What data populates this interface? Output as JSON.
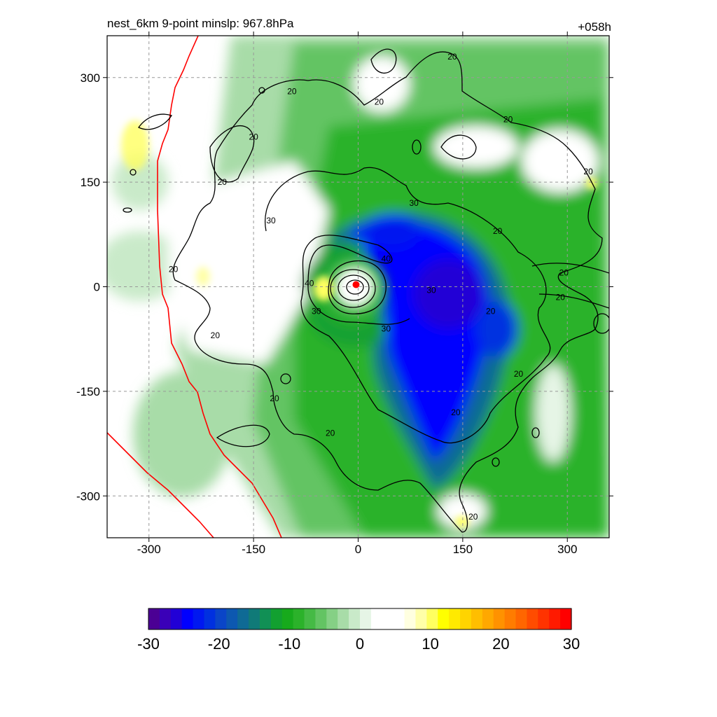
{
  "chart_data": {
    "type": "heatmap",
    "title_left": "nest_6km  9-point minslp: 967.8hPa",
    "title_right": "+058h",
    "xlim": [
      -360,
      360
    ],
    "ylim": [
      -360,
      360
    ],
    "x_ticks": [
      -300,
      -150,
      0,
      150,
      300
    ],
    "y_ticks": [
      300,
      150,
      0,
      -150,
      -300
    ],
    "grid": true,
    "grid_style": "dashed",
    "storm_center": [
      -3,
      3
    ],
    "center_marker_color": "#ff0000",
    "colorbar": {
      "min": -30,
      "max": 30,
      "ticks": [
        -30,
        -20,
        -10,
        0,
        10,
        20,
        30
      ],
      "colors": [
        "#4b0094",
        "#3a00b8",
        "#2100d6",
        "#0000ff",
        "#0018f0",
        "#0030e0",
        "#0a45c8",
        "#0d58b0",
        "#0f6a95",
        "#107a78",
        "#119055",
        "#12a030",
        "#17aa1c",
        "#2bb22a",
        "#45ba45",
        "#63c463",
        "#85d085",
        "#a8dca8",
        "#c9eac9",
        "#e6f5e6",
        "#ffffff",
        "#ffffff",
        "#ffffff",
        "#ffffe0",
        "#ffffa8",
        "#ffff60",
        "#ffff00",
        "#ffea00",
        "#ffd400",
        "#ffbe00",
        "#ffa800",
        "#ff9200",
        "#ff7c00",
        "#ff6600",
        "#ff4c00",
        "#ff3300",
        "#ff1a00",
        "#ff0000"
      ]
    },
    "contours": [
      {
        "level": 40,
        "label": "40"
      },
      {
        "level": 30,
        "label": "30"
      },
      {
        "level": 20,
        "label": "20"
      }
    ],
    "contour_labels": [
      {
        "x": -70,
        "y": 5,
        "text": "40"
      },
      {
        "x": 40,
        "y": 40,
        "text": "40"
      },
      {
        "x": -125,
        "y": 95,
        "text": "30"
      },
      {
        "x": 80,
        "y": 120,
        "text": "30"
      },
      {
        "x": 105,
        "y": -5,
        "text": "30"
      },
      {
        "x": 40,
        "y": -60,
        "text": "30"
      },
      {
        "x": -60,
        "y": -35,
        "text": "30"
      },
      {
        "x": -95,
        "y": 280,
        "text": "20"
      },
      {
        "x": 30,
        "y": 265,
        "text": "20"
      },
      {
        "x": 135,
        "y": 330,
        "text": "20"
      },
      {
        "x": 215,
        "y": 240,
        "text": "20"
      },
      {
        "x": 330,
        "y": 165,
        "text": "20"
      },
      {
        "x": 200,
        "y": 80,
        "text": "20"
      },
      {
        "x": 295,
        "y": 20,
        "text": "20"
      },
      {
        "x": 290,
        "y": -15,
        "text": "20"
      },
      {
        "x": 190,
        "y": -35,
        "text": "20"
      },
      {
        "x": 230,
        "y": -125,
        "text": "20"
      },
      {
        "x": 140,
        "y": -180,
        "text": "20"
      },
      {
        "x": 165,
        "y": -330,
        "text": "20"
      },
      {
        "x": -40,
        "y": -210,
        "text": "20"
      },
      {
        "x": -120,
        "y": -160,
        "text": "20"
      },
      {
        "x": -205,
        "y": -70,
        "text": "20"
      },
      {
        "x": -265,
        "y": 25,
        "text": "20"
      },
      {
        "x": -195,
        "y": 150,
        "text": "20"
      },
      {
        "x": -150,
        "y": 215,
        "text": "20"
      }
    ]
  }
}
